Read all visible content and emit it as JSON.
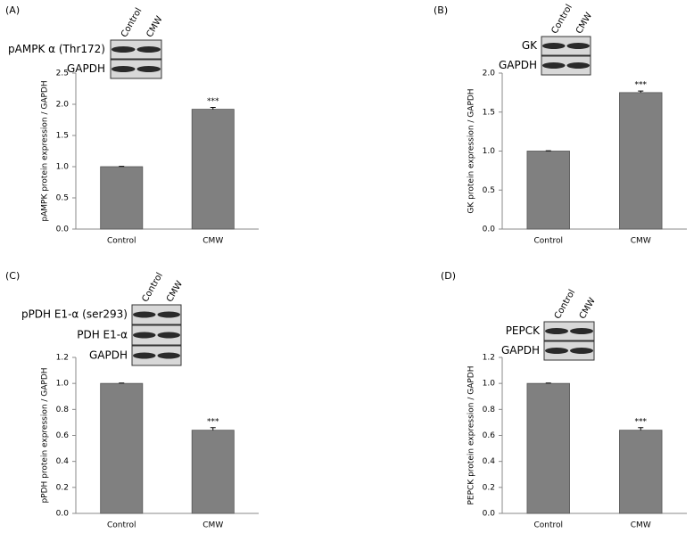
{
  "chart_data": [
    {
      "type": "bar",
      "panel": "(A)",
      "blots": [
        "pAMPK α (Thr172)",
        "GAPDH"
      ],
      "lanes": [
        "Control",
        "CMW"
      ],
      "ylabel": "pAMPK protein expression / GAPDH",
      "categories": [
        "Control",
        "CMW"
      ],
      "values": [
        1.0,
        1.92
      ],
      "errors": [
        0.005,
        0.03
      ],
      "annotations": [
        null,
        "***"
      ],
      "color": "#808080",
      "ylim": [
        0,
        2.5
      ],
      "yticks": [
        {
          "value": 0,
          "label": "0.0"
        },
        0.5,
        {
          "value": 1,
          "label": "1.0"
        },
        1.5,
        {
          "value": 2,
          "label": "2.0"
        },
        2.5
      ]
    },
    {
      "type": "bar",
      "panel": "(B)",
      "blots": [
        "GK",
        "GAPDH"
      ],
      "lanes": [
        "Control",
        "CMW"
      ],
      "ylabel": "GK protein expression / GAPDH",
      "categories": [
        "Control",
        "CMW"
      ],
      "values": [
        1.0,
        1.75
      ],
      "errors": [
        0.005,
        0.02
      ],
      "annotations": [
        null,
        "***"
      ],
      "color": "#808080",
      "ylim": [
        0,
        2.0
      ],
      "yticks": [
        {
          "value": 0,
          "label": "0.0"
        },
        0.5,
        {
          "value": 1,
          "label": "1.0"
        },
        1.5,
        {
          "value": 2,
          "label": "2.0"
        }
      ]
    },
    {
      "type": "bar",
      "panel": "(C)",
      "blots": [
        "pPDH E1-α (ser293)",
        "PDH E1-α",
        "GAPDH"
      ],
      "lanes": [
        "Control",
        "CMW"
      ],
      "ylabel": "pPDH protein expression / GAPDH",
      "categories": [
        "Control",
        "CMW"
      ],
      "values": [
        1.0,
        0.64
      ],
      "errors": [
        0.003,
        0.02
      ],
      "annotations": [
        null,
        "***"
      ],
      "color": "#808080",
      "ylim": [
        0,
        1.2
      ],
      "yticks": [
        {
          "value": 0,
          "label": "0.0"
        },
        0.2,
        0.4,
        0.6,
        0.8,
        {
          "value": 1,
          "label": "1.0"
        },
        1.2
      ]
    },
    {
      "type": "bar",
      "panel": "(D)",
      "blots": [
        "PEPCK",
        "GAPDH"
      ],
      "lanes": [
        "Control",
        "CMW"
      ],
      "ylabel": "PEPCK protein expression / GAPDH",
      "categories": [
        "Control",
        "CMW"
      ],
      "values": [
        1.0,
        0.64
      ],
      "errors": [
        0.003,
        0.02
      ],
      "annotations": [
        null,
        "***"
      ],
      "color": "#808080",
      "ylim": [
        0,
        1.2
      ],
      "yticks": [
        {
          "value": 0,
          "label": "0.0"
        },
        0.2,
        0.4,
        0.6,
        0.8,
        {
          "value": 1,
          "label": "1.0"
        },
        1.2
      ]
    }
  ]
}
